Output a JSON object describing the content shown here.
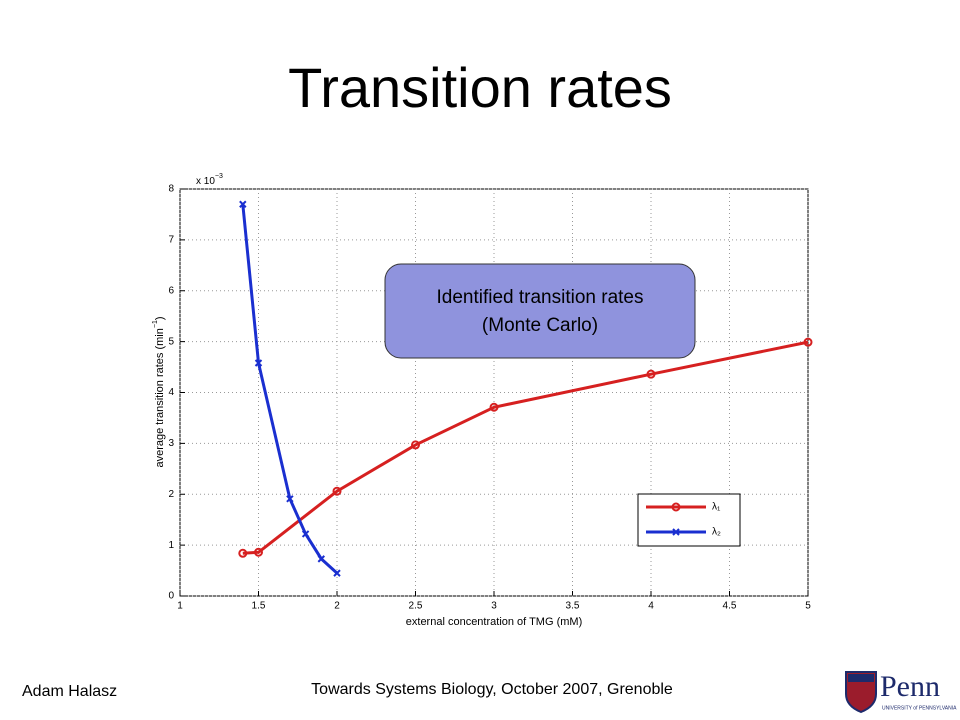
{
  "slide_title": "Transition rates",
  "footer": {
    "author": "Adam Halasz",
    "event": "Towards Systems Biology, October 2007, Grenoble"
  },
  "logo": {
    "name": "Penn",
    "subtitle": "UNIVERSITY of PENNSYLVANIA"
  },
  "chart_data": {
    "type": "line",
    "xlabel": "external concentration of TMG (mM)",
    "ylabel": "average transition rates (min",
    "ylabel_superscript": "−1",
    "ylabel_close": ")",
    "y_multiplier": "x 10",
    "y_multiplier_exponent": "−3",
    "xlim": [
      1,
      5
    ],
    "xticks": [
      1,
      1.5,
      2,
      2.5,
      3,
      3.5,
      4,
      4.5,
      5
    ],
    "ylim": [
      0,
      8
    ],
    "yticks": [
      0,
      1,
      2,
      3,
      4,
      5,
      6,
      7,
      8
    ],
    "grid": true,
    "legend": "lower right",
    "annotation": [
      "Identified transition rates",
      "(Monte Carlo)"
    ],
    "series": [
      {
        "name": "λ₁",
        "color": "#d62020",
        "marker": "circle",
        "x": [
          1.4,
          1.5,
          2,
          2.5,
          3,
          4,
          5
        ],
        "values": [
          0.84,
          0.86,
          2.06,
          2.97,
          3.71,
          4.36,
          4.99
        ]
      },
      {
        "name": "λ₂",
        "color": "#1a2fd0",
        "marker": "x",
        "x": [
          1.4,
          1.5,
          1.7,
          1.8,
          1.9,
          2
        ],
        "values": [
          7.7,
          4.58,
          1.91,
          1.22,
          0.73,
          0.45
        ]
      }
    ]
  }
}
